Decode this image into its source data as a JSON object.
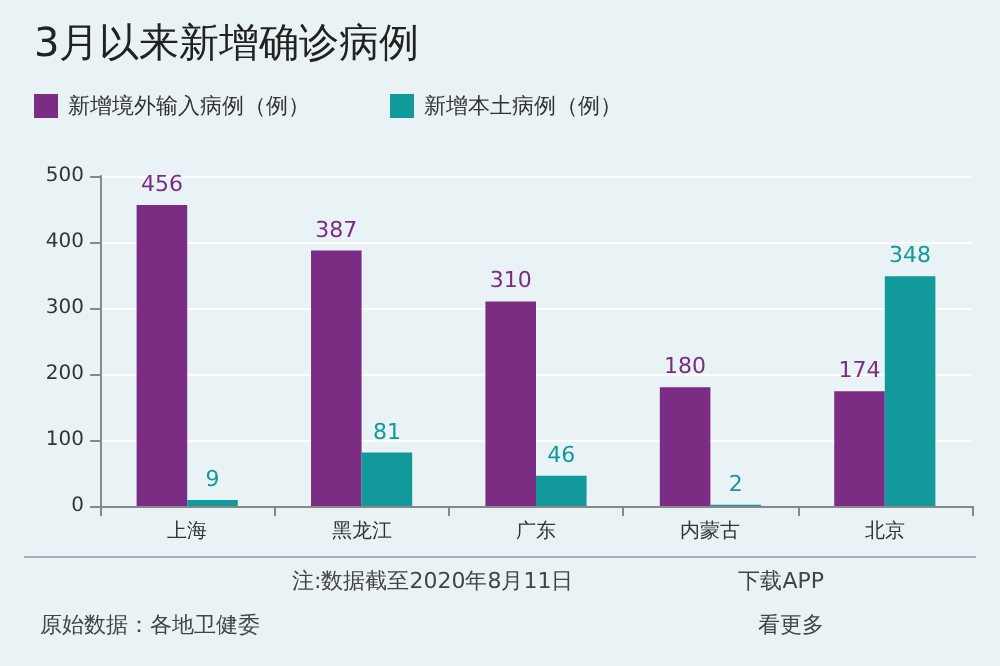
{
  "chart_data": {
    "type": "bar",
    "title": "3月以来新增确诊病例",
    "categories": [
      "上海",
      "黑龙江",
      "广东",
      "内蒙古",
      "北京"
    ],
    "series": [
      {
        "name": "新增境外输入病例（例）",
        "color": "#7b2c83",
        "values": [
          456,
          387,
          310,
          180,
          174
        ]
      },
      {
        "name": "新增本土病例（例）",
        "color": "#12999b",
        "values": [
          9,
          81,
          46,
          2,
          348
        ]
      }
    ],
    "ylim": [
      0,
      500
    ],
    "yticks": [
      0,
      100,
      200,
      300,
      400,
      500
    ],
    "grid": "y",
    "legend": "top left",
    "data_labels": true,
    "annotations": [
      "注:数据截至2020年8月11日",
      "下载APP",
      "原始数据：各地卫健委",
      "看更多"
    ]
  }
}
